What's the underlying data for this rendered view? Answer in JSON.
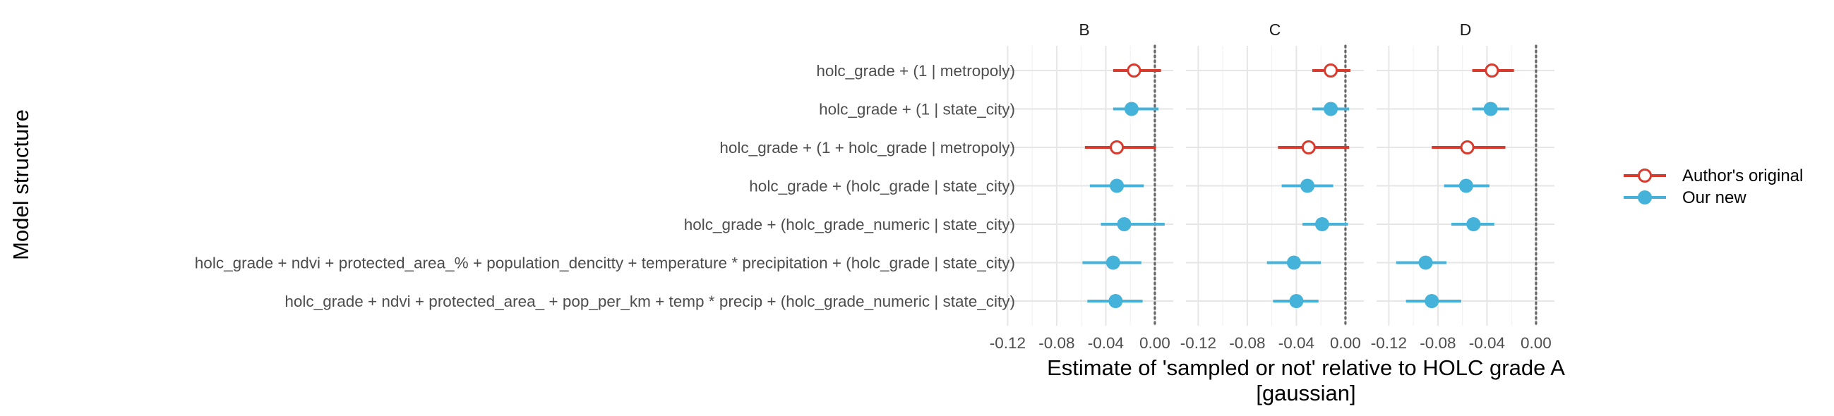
{
  "chart_data": {
    "type": "scatter",
    "subtype": "faceted point-range (forest) plot",
    "facets": [
      "B",
      "C",
      "D"
    ],
    "ylabel": "Model structure",
    "xlabel_lines": [
      "Estimate of 'sampled or not' relative to HOLC grade A",
      "[gaussian]"
    ],
    "xlim": [
      -0.13,
      0.015
    ],
    "x_ticks": [
      -0.12,
      -0.08,
      -0.04,
      0.0
    ],
    "x_tick_labels": [
      "-0.12",
      "-0.08",
      "-0.04",
      "0.00"
    ],
    "reference_line_x": 0,
    "grid": true,
    "legend_position": "right",
    "categories": [
      "holc_grade + (1 | metropoly)",
      "holc_grade + (1 | state_city)",
      "holc_grade + (1 + holc_grade | metropoly)",
      "holc_grade + (holc_grade | state_city)",
      "holc_grade + (holc_grade_numeric | state_city)",
      "holc_grade + ndvi + protected_area_% + population_dencitty + temperature * precipitation + (holc_grade | state_city)",
      "holc_grade + ndvi + protected_area_ + pop_per_km + temp * precip + (holc_grade_numeric | state_city)"
    ],
    "series": [
      {
        "name": "Author's original",
        "color": "#d93a2e",
        "marker": "open-circle",
        "points": [
          {
            "facet": "B",
            "model": 0,
            "estimate": -0.017,
            "low": -0.034,
            "high": 0.005
          },
          {
            "facet": "B",
            "model": 2,
            "estimate": -0.031,
            "low": -0.057,
            "high": 0.001
          },
          {
            "facet": "C",
            "model": 0,
            "estimate": -0.012,
            "low": -0.027,
            "high": 0.004
          },
          {
            "facet": "C",
            "model": 2,
            "estimate": -0.03,
            "low": -0.055,
            "high": 0.003
          },
          {
            "facet": "D",
            "model": 0,
            "estimate": -0.036,
            "low": -0.052,
            "high": -0.018
          },
          {
            "facet": "D",
            "model": 2,
            "estimate": -0.056,
            "low": -0.085,
            "high": -0.025
          }
        ]
      },
      {
        "name": "Our new",
        "color": "#45b3d9",
        "marker": "filled-circle",
        "points": [
          {
            "facet": "B",
            "model": 1,
            "estimate": -0.019,
            "low": -0.034,
            "high": 0.003
          },
          {
            "facet": "B",
            "model": 3,
            "estimate": -0.031,
            "low": -0.053,
            "high": -0.009
          },
          {
            "facet": "B",
            "model": 4,
            "estimate": -0.025,
            "low": -0.044,
            "high": 0.008
          },
          {
            "facet": "B",
            "model": 5,
            "estimate": -0.034,
            "low": -0.059,
            "high": -0.011
          },
          {
            "facet": "B",
            "model": 6,
            "estimate": -0.032,
            "low": -0.055,
            "high": -0.01
          },
          {
            "facet": "C",
            "model": 1,
            "estimate": -0.012,
            "low": -0.027,
            "high": 0.003
          },
          {
            "facet": "C",
            "model": 3,
            "estimate": -0.031,
            "low": -0.052,
            "high": -0.01
          },
          {
            "facet": "C",
            "model": 4,
            "estimate": -0.019,
            "low": -0.035,
            "high": 0.002
          },
          {
            "facet": "C",
            "model": 5,
            "estimate": -0.042,
            "low": -0.064,
            "high": -0.02
          },
          {
            "facet": "C",
            "model": 6,
            "estimate": -0.04,
            "low": -0.059,
            "high": -0.022
          },
          {
            "facet": "D",
            "model": 1,
            "estimate": -0.037,
            "low": -0.052,
            "high": -0.022
          },
          {
            "facet": "D",
            "model": 3,
            "estimate": -0.057,
            "low": -0.075,
            "high": -0.038
          },
          {
            "facet": "D",
            "model": 4,
            "estimate": -0.051,
            "low": -0.069,
            "high": -0.034
          },
          {
            "facet": "D",
            "model": 5,
            "estimate": -0.09,
            "low": -0.114,
            "high": -0.073
          },
          {
            "facet": "D",
            "model": 6,
            "estimate": -0.085,
            "low": -0.106,
            "high": -0.061
          }
        ]
      }
    ]
  }
}
